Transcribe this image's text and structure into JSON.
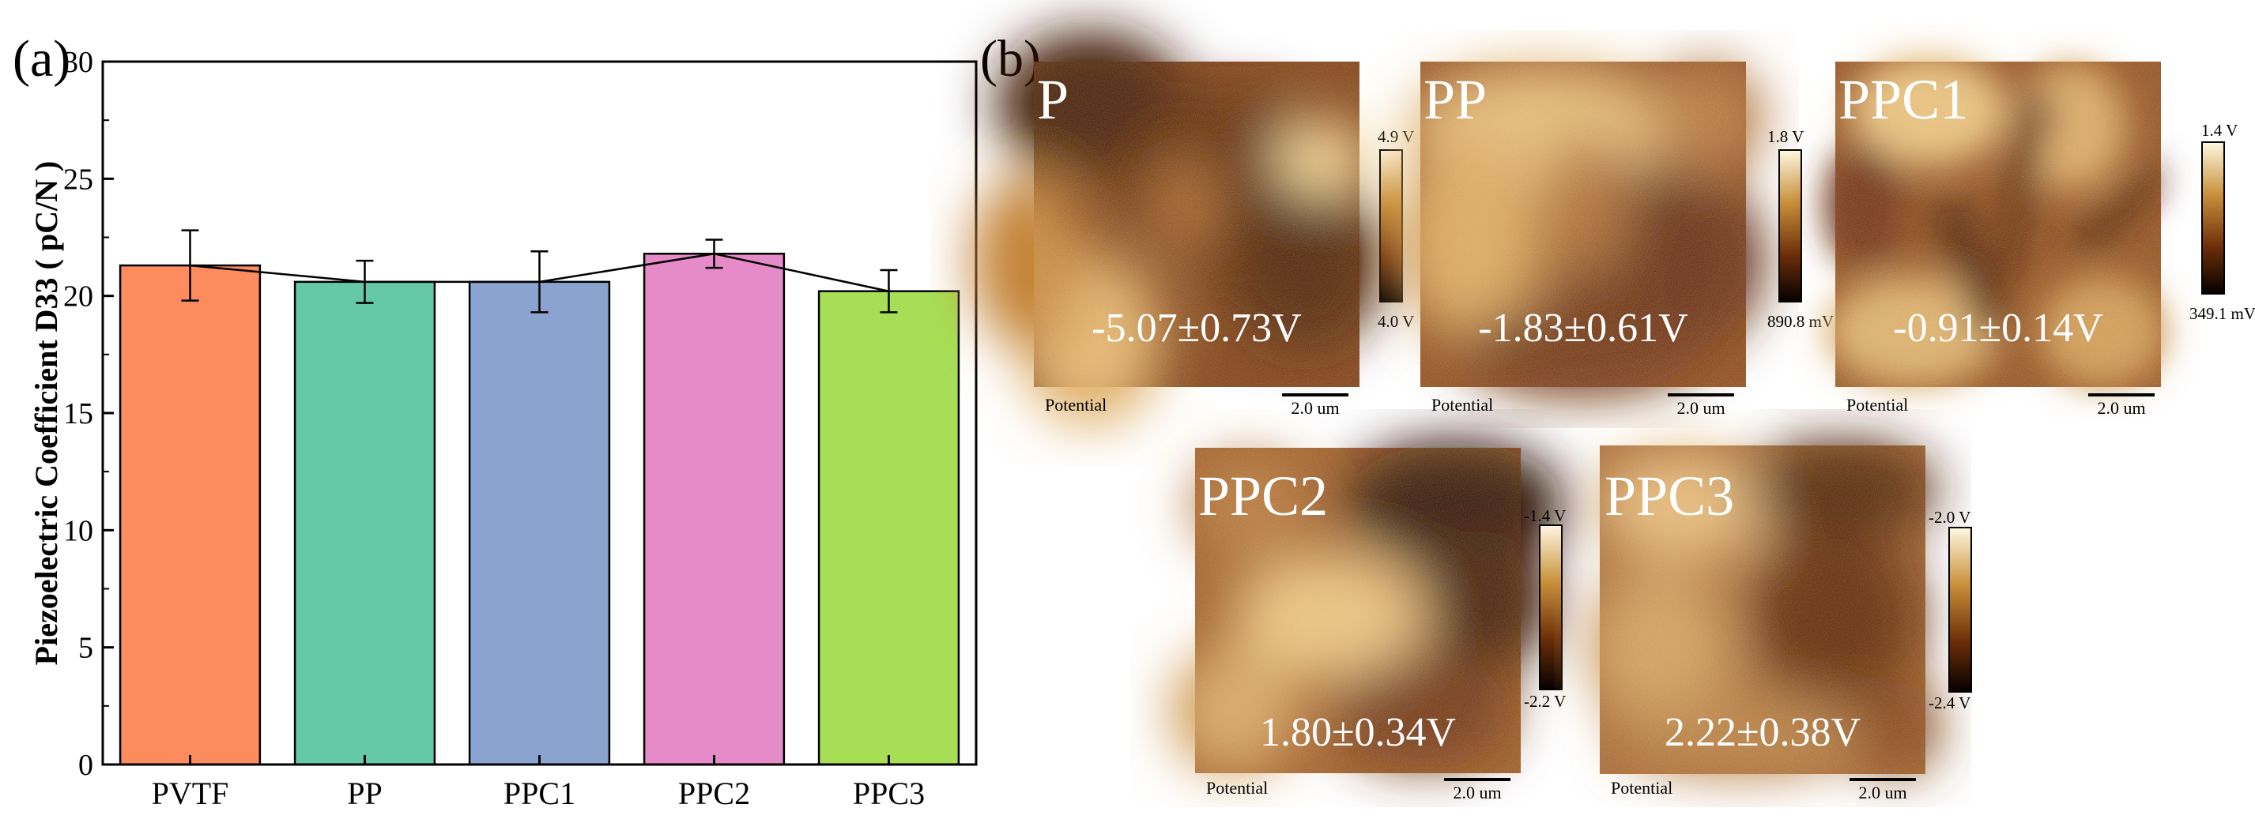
{
  "panel_a": {
    "label": "(a)",
    "chart_data": {
      "type": "bar",
      "title": "",
      "xlabel": "",
      "ylabel": "Piezoelectric Coefficient D33 ( pC/N )",
      "categories": [
        "PVTF",
        "PP",
        "PPC1",
        "PPC2",
        "PPC3"
      ],
      "values": [
        21.3,
        20.6,
        20.6,
        21.8,
        20.2
      ],
      "errors": [
        1.5,
        0.9,
        1.3,
        0.6,
        0.9
      ],
      "colors": [
        "#FC8B5E",
        "#65C9A7",
        "#8BA3CF",
        "#E58CC8",
        "#A6DF56"
      ],
      "ylim": [
        0,
        30
      ],
      "yticks": [
        "0",
        "5",
        "10",
        "15",
        "20",
        "25",
        "30"
      ],
      "connecting_line": true
    }
  },
  "panel_b": {
    "label": "(b)",
    "images": [
      {
        "name": "P",
        "value": "-5.07±0.73V",
        "cb_max": "4.9 V",
        "cb_min": "4.0 V",
        "caption": "Potential",
        "scale": "2.0 um"
      },
      {
        "name": "PP",
        "value": "-1.83±0.61V",
        "cb_max": "1.8 V",
        "cb_min": "890.8 mV",
        "caption": "Potential",
        "scale": "2.0 um"
      },
      {
        "name": "PPC1",
        "value": "-0.91±0.14V",
        "cb_max": "1.4 V",
        "cb_min": "349.1 mV",
        "caption": "Potential",
        "scale": "2.0 um"
      },
      {
        "name": "PPC2",
        "value": "1.80±0.34V",
        "cb_max": "-1.4 V",
        "cb_min": "-2.2 V",
        "caption": "Potential",
        "scale": "2.0 um"
      },
      {
        "name": "PPC3",
        "value": "2.22±0.38V",
        "cb_max": "-2.0 V",
        "cb_min": "-2.4 V",
        "caption": "Potential",
        "scale": "2.0 um"
      }
    ]
  }
}
